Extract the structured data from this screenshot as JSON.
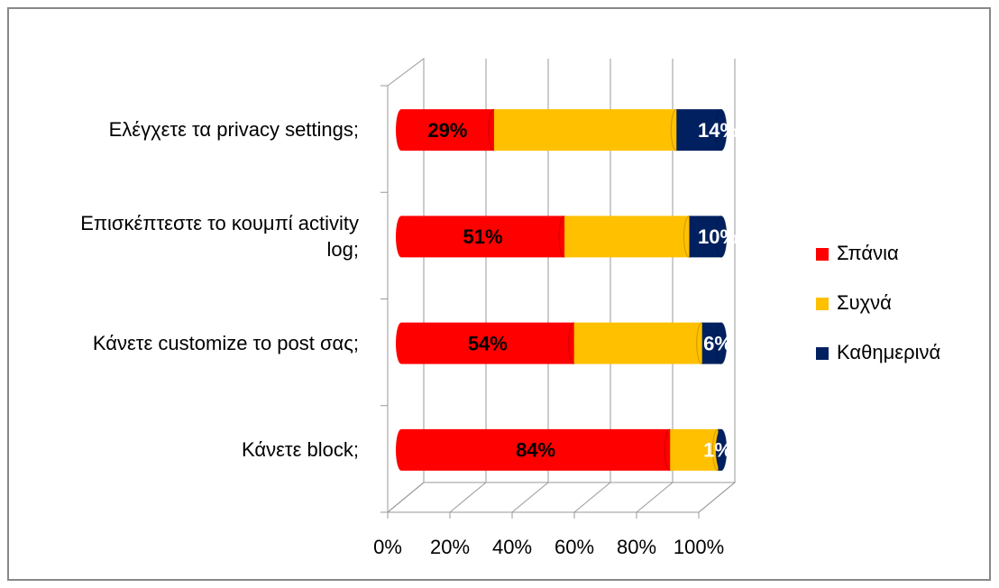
{
  "chart_data": {
    "type": "stacked-bar-3d",
    "categories": [
      "Ελέγχετε τα privacy settings;",
      "Επισκέπτεστε το κουμπί activity log;",
      "Κάνετε customize το post σας;",
      "Κάνετε block;"
    ],
    "series": [
      {
        "name": "Σπάνια",
        "color": "#ff0000",
        "values": [
          29,
          51,
          54,
          84
        ],
        "value_labels": [
          "29%",
          "51%",
          "54%",
          "84%"
        ]
      },
      {
        "name": "Συχνά",
        "color": "#ffc000",
        "values": [
          57,
          39,
          40,
          15
        ]
      },
      {
        "name": "Καθημερινά",
        "color": "#002060",
        "values": [
          14,
          10,
          6,
          1
        ],
        "value_labels": [
          "14%",
          "10%",
          "6%",
          "1%"
        ]
      }
    ],
    "xlim": [
      0,
      100
    ],
    "xticks": [
      {
        "value": 0,
        "label": "0%"
      },
      {
        "value": 20,
        "label": "20%"
      },
      {
        "value": 40,
        "label": "40%"
      },
      {
        "value": 60,
        "label": "60%"
      },
      {
        "value": 80,
        "label": "80%"
      },
      {
        "value": 100,
        "label": "100%"
      }
    ],
    "grid": true,
    "legend": "right"
  }
}
